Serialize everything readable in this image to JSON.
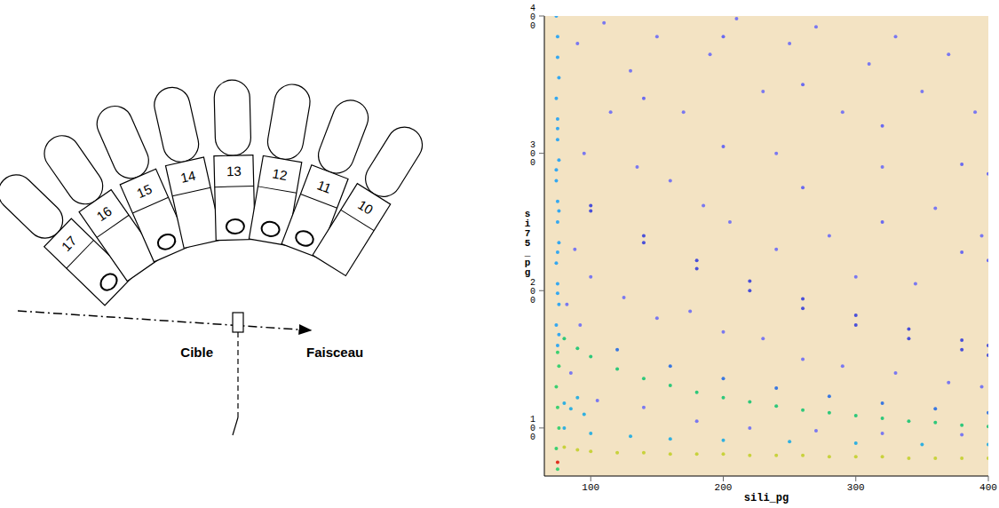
{
  "diagram": {
    "modules": [
      "17",
      "16",
      "15",
      "14",
      "13",
      "12",
      "11",
      "10"
    ],
    "target_label": "Cible",
    "beam_label": "Faisceau"
  },
  "chart_data": {
    "type": "scatter",
    "x_label": "sili_pg",
    "y_label": "si75_pg",
    "xlim": [
      65,
      400
    ],
    "ylim": [
      65,
      400
    ],
    "xticks": [
      100,
      200,
      300,
      400
    ],
    "yticks": [
      100,
      200,
      300,
      400
    ],
    "grid": false,
    "series": [
      {
        "color": "#7a78f0",
        "x": [
          90,
          110,
          130,
          150,
          170,
          190,
          210,
          230,
          250,
          270,
          290,
          310,
          330,
          350,
          370,
          390,
          95,
          115,
          135,
          160,
          185,
          205,
          240,
          280,
          320,
          360,
          395,
          100,
          125,
          150,
          175,
          200,
          230,
          260,
          290,
          330,
          370,
          395,
          85,
          105,
          140,
          180,
          220,
          270,
          320,
          380,
          88,
          82,
          92,
          300,
          345,
          240
        ],
        "y": [
          380,
          395,
          360,
          385,
          330,
          372,
          398,
          345,
          380,
          392,
          330,
          365,
          385,
          345,
          372,
          330,
          300,
          330,
          290,
          280,
          262,
          250,
          300,
          240,
          290,
          260,
          240,
          210,
          195,
          180,
          185,
          170,
          165,
          150,
          145,
          140,
          133,
          130,
          140,
          120,
          115,
          105,
          100,
          98,
          96,
          95,
          230,
          190,
          175,
          210,
          205,
          230
        ]
      },
      {
        "color": "#6a6af0",
        "x": [
          140,
          200,
          260,
          320,
          380,
          400,
          200,
          260,
          320,
          380,
          400
        ],
        "y": [
          340,
          305,
          275,
          250,
          228,
          222,
          385,
          350,
          320,
          292,
          285
        ]
      },
      {
        "color": "#4a50d8",
        "x": [
          100,
          140,
          180,
          220,
          260,
          300,
          340,
          380,
          400,
          100,
          140,
          180,
          220,
          260,
          300,
          340,
          380,
          400
        ],
        "y": [
          258,
          235,
          216,
          200,
          187,
          175,
          165,
          157,
          153,
          262,
          240,
          222,
          207,
          194,
          182,
          172,
          164,
          160
        ]
      },
      {
        "color": "#3a78e0",
        "x": [
          120,
          160,
          200,
          240,
          280,
          320,
          360,
          400
        ],
        "y": [
          157,
          145,
          136,
          129,
          123,
          118,
          114,
          111
        ]
      },
      {
        "color": "#2ec87a",
        "x": [
          80,
          90,
          100,
          120,
          140,
          160,
          180,
          200,
          220,
          240,
          260,
          280,
          300,
          320,
          340,
          360,
          380,
          400
        ],
        "y": [
          165,
          158,
          152,
          143,
          136,
          131,
          126,
          122,
          119,
          116,
          113,
          111,
          109,
          107,
          105,
          104,
          102,
          101
        ]
      },
      {
        "color": "#30b0e0",
        "x": [
          80,
          100,
          130,
          160,
          200,
          250,
          300,
          350,
          400,
          80,
          85,
          90,
          95
        ],
        "y": [
          100,
          96,
          94,
          92,
          91,
          90,
          89,
          88,
          88,
          118,
          114,
          122,
          110
        ]
      },
      {
        "color": "#c8d23c",
        "x": [
          80,
          90,
          100,
          120,
          140,
          160,
          180,
          200,
          220,
          240,
          260,
          280,
          300,
          320,
          340,
          360,
          380,
          400
        ],
        "y": [
          86,
          84,
          83,
          82,
          82,
          81,
          81,
          81,
          80,
          80,
          80,
          79,
          79,
          79,
          78,
          78,
          78,
          78
        ]
      },
      {
        "color": "#35a8f0",
        "x": [
          75,
          74,
          76,
          75,
          74,
          76,
          75,
          75,
          74,
          76,
          75,
          75,
          74,
          76,
          75,
          75,
          74,
          76,
          75,
          75,
          76,
          74,
          75
        ],
        "y": [
          160,
          175,
          190,
          205,
          220,
          235,
          250,
          265,
          280,
          295,
          310,
          325,
          340,
          355,
          370,
          385,
          400,
          168,
          198,
          228,
          258,
          288,
          318
        ]
      },
      {
        "color": "#3cd070",
        "x": [
          75,
          74,
          76,
          75,
          74,
          76,
          75
        ],
        "y": [
          70,
          85,
          100,
          115,
          130,
          145,
          155
        ]
      },
      {
        "color": "#e03020",
        "x": [
          75
        ],
        "y": [
          75
        ]
      }
    ]
  }
}
